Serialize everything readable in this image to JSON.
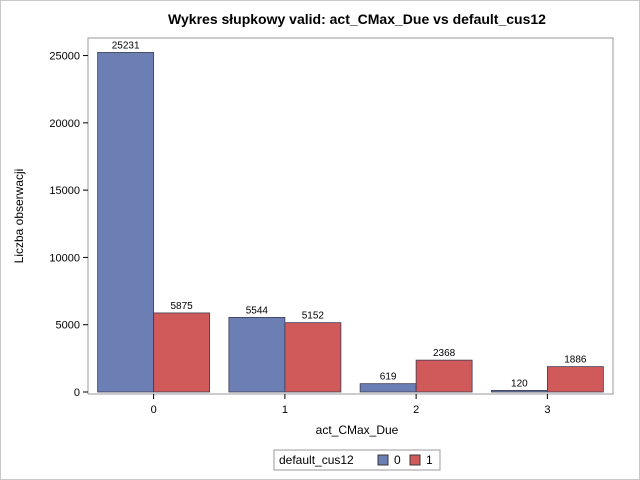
{
  "chart_data": {
    "type": "bar",
    "title": "Wykres słupkowy valid: act_CMax_Due vs default_cus12",
    "xlabel": "act_CMax_Due",
    "ylabel": "Liczba obserwacji",
    "categories": [
      "0",
      "1",
      "2",
      "3"
    ],
    "series": [
      {
        "name": "0",
        "values": [
          25231,
          5544,
          619,
          120
        ],
        "color": "#6b7fb5"
      },
      {
        "name": "1",
        "values": [
          5875,
          5152,
          2368,
          1886
        ],
        "color": "#d05a5a"
      }
    ],
    "ylim": [
      0,
      27000
    ],
    "yticks": [
      0,
      5000,
      10000,
      15000,
      20000,
      25000
    ],
    "grid": false,
    "legend": {
      "title": "default_cus12",
      "placement": "bottom-center"
    }
  }
}
